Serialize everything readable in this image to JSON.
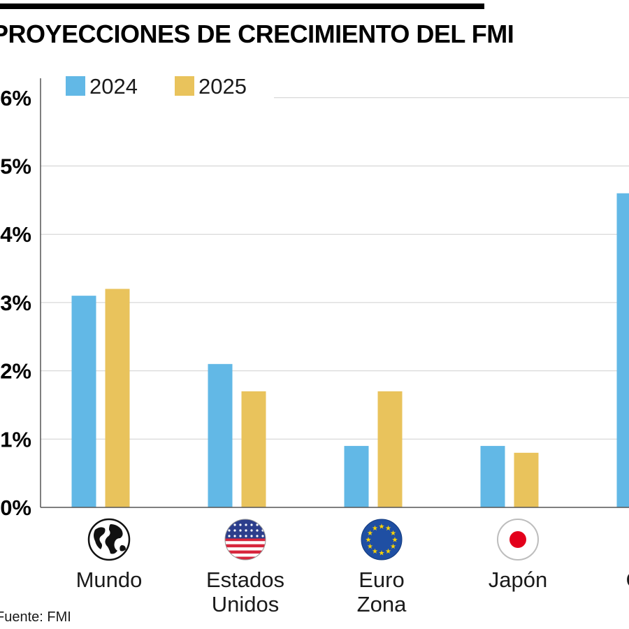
{
  "title": "PROYECCIONES DE CRECIMIENTO DEL FMI",
  "source": "Fuente: FMI",
  "colors": {
    "2024": "#62b8e6",
    "2025": "#e9c35c",
    "grid": "#cfcfcf",
    "axis": "#555555"
  },
  "chart_data": {
    "type": "bar",
    "title": "PROYECCIONES DE CRECIMIENTO DEL FMI",
    "categories": [
      [
        "Mundo"
      ],
      [
        "Estados",
        "Unidos"
      ],
      [
        "Euro",
        "Zona"
      ],
      [
        "Japón"
      ],
      [
        "China"
      ]
    ],
    "category_icons": [
      "globe-icon",
      "us-flag-icon",
      "eu-flag-icon",
      "japan-flag-icon",
      "china-flag-icon"
    ],
    "series": [
      {
        "name": "2024",
        "color": "#62b8e6",
        "values": [
          3.1,
          2.1,
          0.9,
          0.9,
          4.6
        ]
      },
      {
        "name": "2025",
        "color": "#e9c35c",
        "values": [
          3.2,
          1.7,
          1.7,
          0.8,
          null
        ]
      }
    ],
    "yticks": [
      "0%",
      "1%",
      "2%",
      "3%",
      "4%",
      "5%",
      "6%"
    ],
    "ylim": [
      0,
      6
    ],
    "grid": true,
    "legend": "top-left"
  }
}
